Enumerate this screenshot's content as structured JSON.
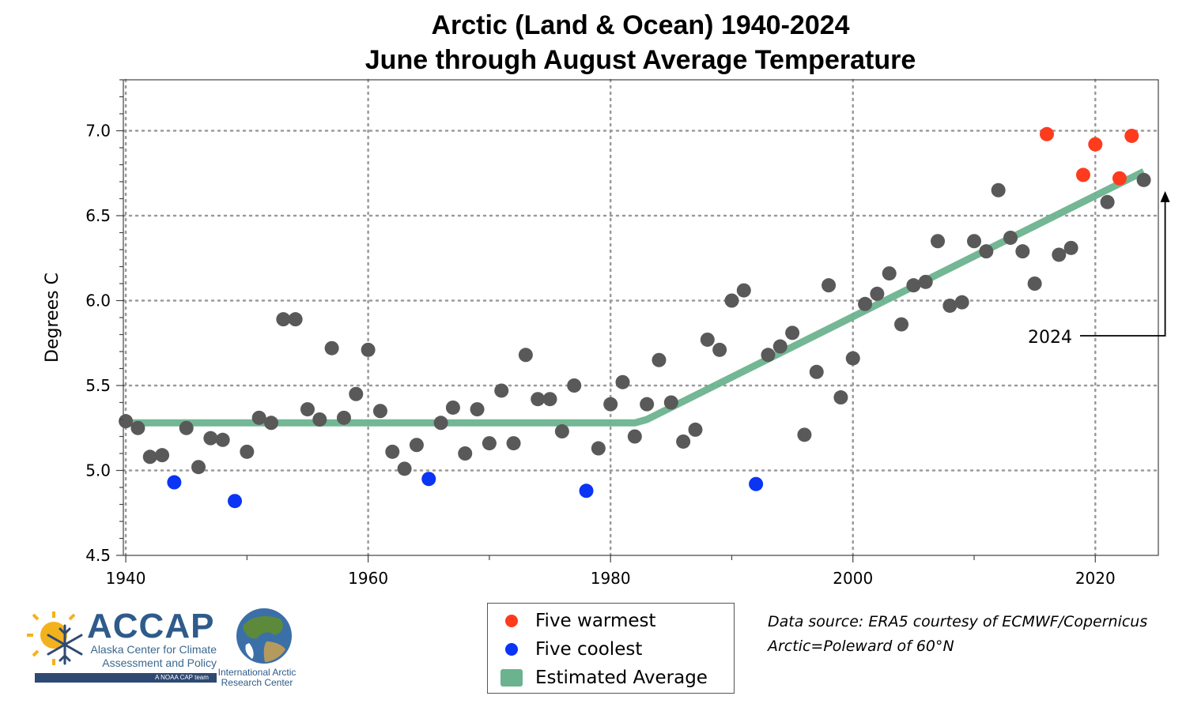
{
  "chart_data": {
    "type": "scatter",
    "title": "Arctic (Land & Ocean) 1940-2024",
    "subtitle": "June through August Average Temperature",
    "xlabel": "",
    "ylabel": "Degrees C",
    "xlim": [
      1939.8,
      2025.2
    ],
    "ylim": [
      4.5,
      7.3
    ],
    "x_ticks": [
      1940,
      1960,
      1980,
      2000,
      2020
    ],
    "y_ticks": [
      4.5,
      5.0,
      5.5,
      6.0,
      6.5,
      7.0
    ],
    "grid": true,
    "legend_placement": "bottom-center",
    "series": [
      {
        "name": "",
        "color": "#595959",
        "x": [
          1940,
          1941,
          1942,
          1943,
          1945,
          1946,
          1947,
          1948,
          1950,
          1951,
          1952,
          1953,
          1954,
          1955,
          1956,
          1957,
          1958,
          1959,
          1960,
          1961,
          1962,
          1963,
          1964,
          1966,
          1967,
          1968,
          1969,
          1970,
          1971,
          1972,
          1973,
          1974,
          1975,
          1976,
          1977,
          1979,
          1980,
          1981,
          1982,
          1983,
          1984,
          1985,
          1986,
          1987,
          1988,
          1989,
          1990,
          1991,
          1993,
          1994,
          1995,
          1996,
          1997,
          1998,
          1999,
          2000,
          2001,
          2002,
          2003,
          2004,
          2005,
          2006,
          2007,
          2008,
          2009,
          2010,
          2011,
          2012,
          2013,
          2014,
          2015,
          2017,
          2018,
          2021,
          2024
        ],
        "y": [
          5.29,
          5.25,
          5.08,
          5.09,
          5.25,
          5.02,
          5.19,
          5.18,
          5.11,
          5.31,
          5.28,
          5.89,
          5.89,
          5.36,
          5.3,
          5.72,
          5.31,
          5.45,
          5.71,
          5.35,
          5.11,
          5.01,
          5.15,
          5.28,
          5.37,
          5.1,
          5.36,
          5.16,
          5.47,
          5.16,
          5.68,
          5.42,
          5.42,
          5.23,
          5.5,
          5.13,
          5.39,
          5.52,
          5.2,
          5.39,
          5.65,
          5.4,
          5.17,
          5.24,
          5.77,
          5.71,
          6.0,
          6.06,
          5.68,
          5.73,
          5.81,
          5.21,
          5.58,
          6.09,
          5.43,
          5.66,
          5.98,
          6.04,
          6.16,
          5.86,
          6.09,
          6.11,
          6.35,
          5.97,
          5.99,
          6.35,
          6.29,
          6.65,
          6.37,
          6.29,
          6.1,
          6.27,
          6.31,
          6.58,
          6.71
        ]
      },
      {
        "name": "Five warmest",
        "color": "#ff3b1d",
        "x": [
          2016,
          2019,
          2020,
          2022,
          2023
        ],
        "y": [
          6.98,
          6.74,
          6.92,
          6.72,
          6.97
        ]
      },
      {
        "name": "Five coolest",
        "color": "#0b34f5",
        "x": [
          1944,
          1949,
          1965,
          1978,
          1992
        ],
        "y": [
          4.93,
          4.82,
          4.95,
          4.88,
          4.92
        ]
      }
    ],
    "trend": {
      "name": "Estimated Average",
      "color": "#6bb38f",
      "x": [
        1940,
        1982,
        1983,
        2024
      ],
      "y": [
        5.28,
        5.28,
        5.3,
        6.76
      ]
    },
    "annotations": [
      {
        "text": "2024",
        "target_x": 2024,
        "target_y": 6.71
      }
    ]
  },
  "legend": {
    "items": [
      {
        "label": "Five warmest",
        "color": "#ff3b1d",
        "kind": "dot"
      },
      {
        "label": "Five coolest",
        "color": "#0b34f5",
        "kind": "dot"
      },
      {
        "label": "Estimated Average",
        "color": "#6bb38f",
        "kind": "swatch"
      }
    ]
  },
  "source": {
    "line1": "Data source: ERA5 courtesy of ECMWF/Copernicus",
    "line2": "Arctic=Poleward of 60°N"
  },
  "logos": {
    "accap_name": "ACCAP",
    "accap_line1": "Alaska Center for Climate",
    "accap_line2": "Assessment and Policy",
    "accap_tag": "A NOAA CAP team",
    "iarc_line1": "International Arctic",
    "iarc_line2": "Research Center"
  }
}
